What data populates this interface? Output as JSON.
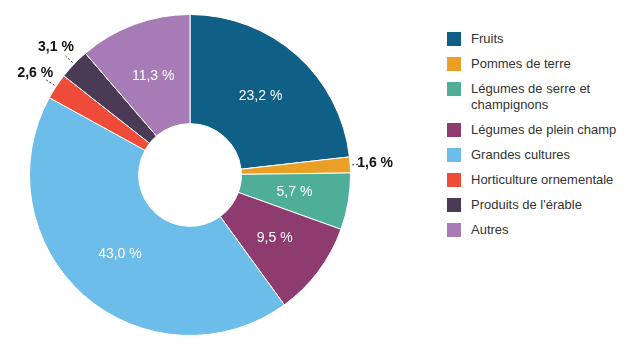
{
  "chart_data": {
    "type": "doughnut",
    "categories": [
      "Fruits",
      "Pommes de terre",
      "Légumes de serre et champignons",
      "Légumes de plein champ",
      "Grandes cultures",
      "Horticulture ornementale",
      "Produits de l'érable",
      "Autres"
    ],
    "values": [
      23.2,
      1.6,
      5.7,
      9.5,
      43.0,
      2.6,
      3.1,
      11.3
    ],
    "value_labels": [
      "23,2 %",
      "1,6 %",
      "5,7 %",
      "9,5 %",
      "43,0 %",
      "2,6 %",
      "3,1 %",
      "11,3 %"
    ],
    "colors": [
      "#0f5f86",
      "#e9a024",
      "#4fae98",
      "#8e3b70",
      "#6cbde9",
      "#ee4b39",
      "#4b3a56",
      "#a67bb6"
    ],
    "legend": "right",
    "data_labels": true
  }
}
